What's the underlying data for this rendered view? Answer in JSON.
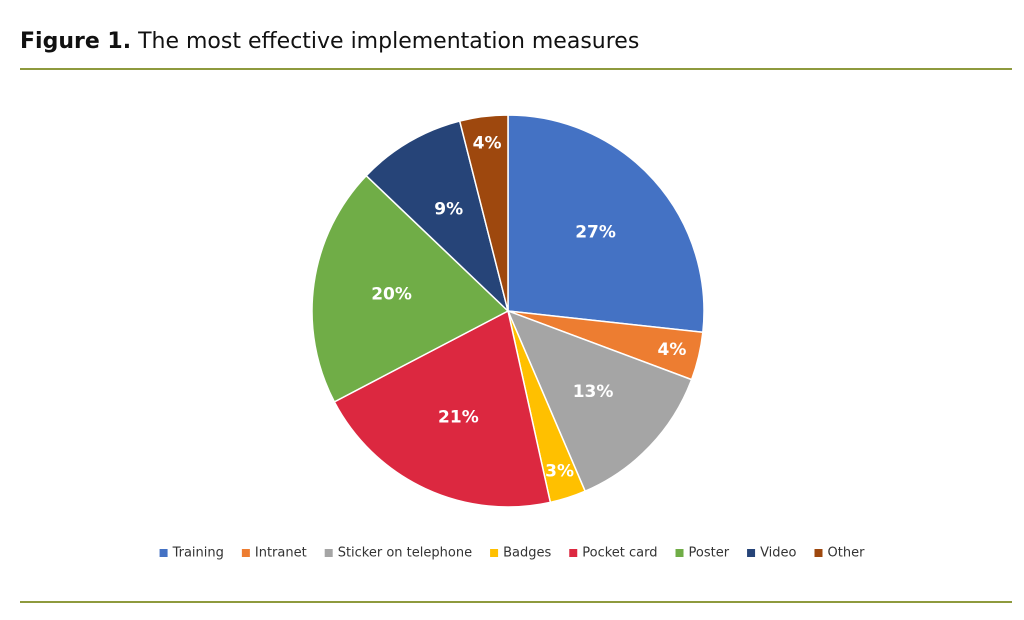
{
  "chart_data": {
    "type": "pie",
    "figure_label": "Figure 1.",
    "title": "The most effective implementation measures",
    "categories": [
      "Training",
      "Intranet",
      "Sticker on telephone",
      "Badges",
      "Pocket card",
      "Poster",
      "Video",
      "Other"
    ],
    "values": [
      27,
      4,
      13,
      3,
      21,
      20,
      9,
      4
    ],
    "value_labels": [
      "27%",
      "4%",
      "13%",
      "3%",
      "21%",
      "20%",
      "9%",
      "4%"
    ],
    "colors": [
      "#4472c4",
      "#ed7d31",
      "#a5a5a5",
      "#ffc000",
      "#dc2840",
      "#70ad47",
      "#264478",
      "#9e480e"
    ],
    "legend": "bottom"
  }
}
